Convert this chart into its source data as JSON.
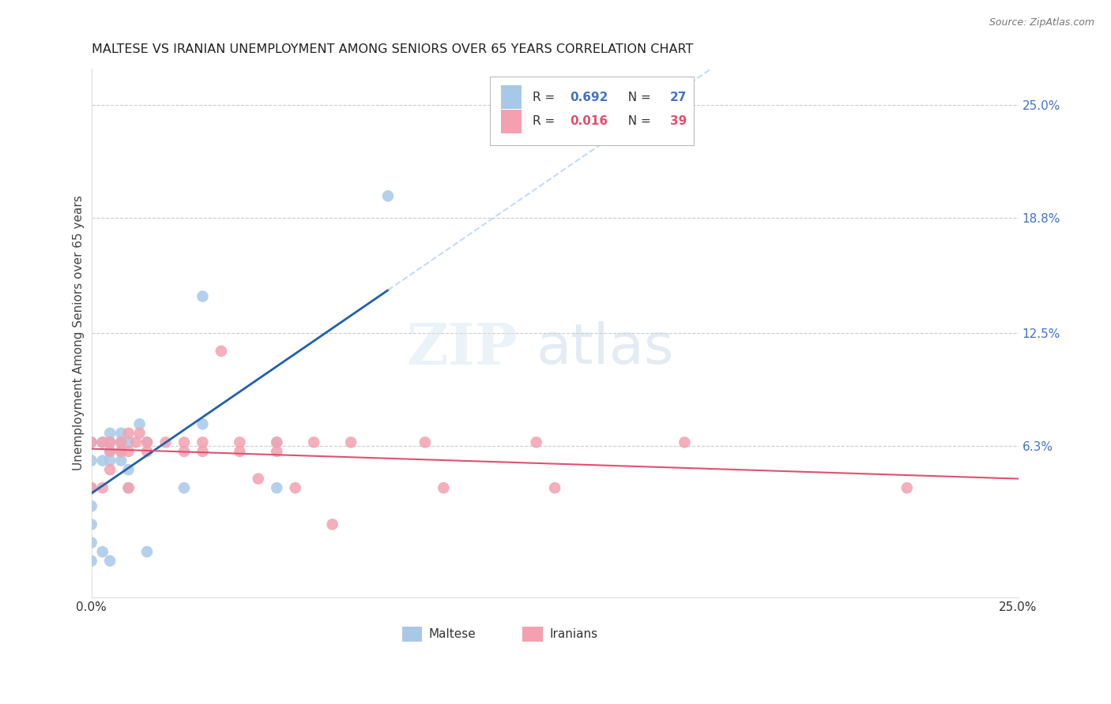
{
  "title": "MALTESE VS IRANIAN UNEMPLOYMENT AMONG SENIORS OVER 65 YEARS CORRELATION CHART",
  "source": "Source: ZipAtlas.com",
  "ylabel": "Unemployment Among Seniors over 65 years",
  "xlim": [
    0,
    25
  ],
  "ylim": [
    -2,
    27
  ],
  "ytick_values": [
    0,
    6.3,
    12.5,
    18.8,
    25.0
  ],
  "ytick_labels": [
    "",
    "6.3%",
    "12.5%",
    "18.8%",
    "25.0%"
  ],
  "xtick_values": [
    0,
    5,
    10,
    15,
    20,
    25
  ],
  "xtick_labels": [
    "0.0%",
    "",
    "",
    "",
    "",
    "25.0%"
  ],
  "hline_values": [
    6.3,
    12.5,
    18.8,
    25.0
  ],
  "maltese_R": "0.692",
  "maltese_N": "27",
  "iranian_R": "0.016",
  "iranian_N": "39",
  "maltese_color": "#a8c8e8",
  "iranian_color": "#f4a0b0",
  "maltese_line_color": "#2060b0",
  "iranian_line_color": "#e05070",
  "watermark_zip": "ZIP",
  "watermark_atlas": "atlas",
  "maltese_x": [
    0.0,
    0.0,
    0.0,
    0.0,
    0.0,
    0.0,
    0.0,
    0.3,
    0.3,
    0.3,
    0.5,
    0.5,
    0.5,
    0.5,
    0.5,
    0.8,
    0.8,
    0.8,
    0.8,
    1.0,
    1.0,
    1.0,
    1.3,
    1.5,
    1.5,
    2.5,
    3.0,
    3.0,
    5.0,
    5.0,
    8.0
  ],
  "maltese_y": [
    0.0,
    1.0,
    2.0,
    3.0,
    4.0,
    5.5,
    6.5,
    0.5,
    5.5,
    6.5,
    0.0,
    5.5,
    6.0,
    6.5,
    7.0,
    5.5,
    6.0,
    6.5,
    7.0,
    4.0,
    5.0,
    6.5,
    7.5,
    0.5,
    6.5,
    4.0,
    7.5,
    14.5,
    4.0,
    6.5,
    20.0
  ],
  "iranian_x": [
    0.0,
    0.0,
    0.3,
    0.3,
    0.5,
    0.5,
    0.5,
    0.8,
    0.8,
    1.0,
    1.0,
    1.0,
    1.2,
    1.3,
    1.5,
    1.5,
    2.0,
    2.5,
    2.5,
    3.0,
    3.0,
    3.5,
    4.0,
    4.0,
    4.5,
    5.0,
    5.0,
    5.5,
    6.0,
    6.5,
    7.0,
    9.0,
    9.5,
    12.0,
    12.5,
    16.0,
    22.0
  ],
  "iranian_y": [
    4.0,
    6.5,
    6.5,
    4.0,
    6.5,
    6.0,
    5.0,
    6.5,
    6.0,
    7.0,
    6.0,
    4.0,
    6.5,
    7.0,
    6.5,
    6.0,
    6.5,
    6.5,
    6.0,
    6.5,
    6.0,
    11.5,
    6.5,
    6.0,
    4.5,
    6.5,
    6.0,
    4.0,
    6.5,
    2.0,
    6.5,
    6.5,
    4.0,
    6.5,
    4.0,
    6.5,
    4.0
  ],
  "background_color": "#ffffff"
}
